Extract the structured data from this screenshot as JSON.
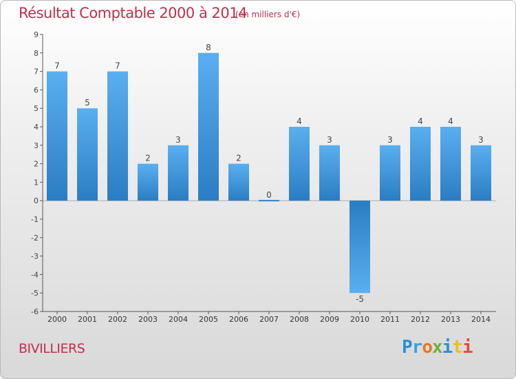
{
  "header": {
    "title": "Résultat Comptable 2000 à 2014",
    "subtitle": "(en milliers d'€)"
  },
  "commune": "BIVILLIERS",
  "logo": {
    "letters": [
      {
        "ch": "P",
        "color": "#2a8fd6"
      },
      {
        "ch": "r",
        "color": "#3aa0e0"
      },
      {
        "ch": "o",
        "color": "#e87722"
      },
      {
        "ch": "x",
        "color": "#6cb33e"
      },
      {
        "ch": "i",
        "color": "#2a8fd6"
      },
      {
        "ch": "t",
        "color": "#e8c21a"
      },
      {
        "ch": "i",
        "color": "#e84a3a"
      }
    ]
  },
  "chart_data": {
    "type": "bar",
    "title": "Résultat Comptable 2000 à 2014",
    "unit": "(en milliers d'€)",
    "categories": [
      "2000",
      "2001",
      "2002",
      "2003",
      "2004",
      "2005",
      "2006",
      "2007",
      "2008",
      "2009",
      "2010",
      "2011",
      "2012",
      "2013",
      "2014"
    ],
    "values": [
      7,
      5,
      7,
      2,
      3,
      8,
      2,
      0,
      4,
      3,
      -5,
      3,
      4,
      4,
      3
    ],
    "ylim": [
      -6,
      9
    ],
    "yticks": [
      -6,
      -5,
      -4,
      -3,
      -2,
      -1,
      0,
      1,
      2,
      3,
      4,
      5,
      6,
      7,
      8,
      9
    ],
    "grid": false,
    "xlabel": "",
    "ylabel": "",
    "colors": {
      "bar_light": "#5aaff0",
      "bar_dark": "#2a7dc2",
      "axis": "#555555",
      "label": "#444444"
    }
  }
}
